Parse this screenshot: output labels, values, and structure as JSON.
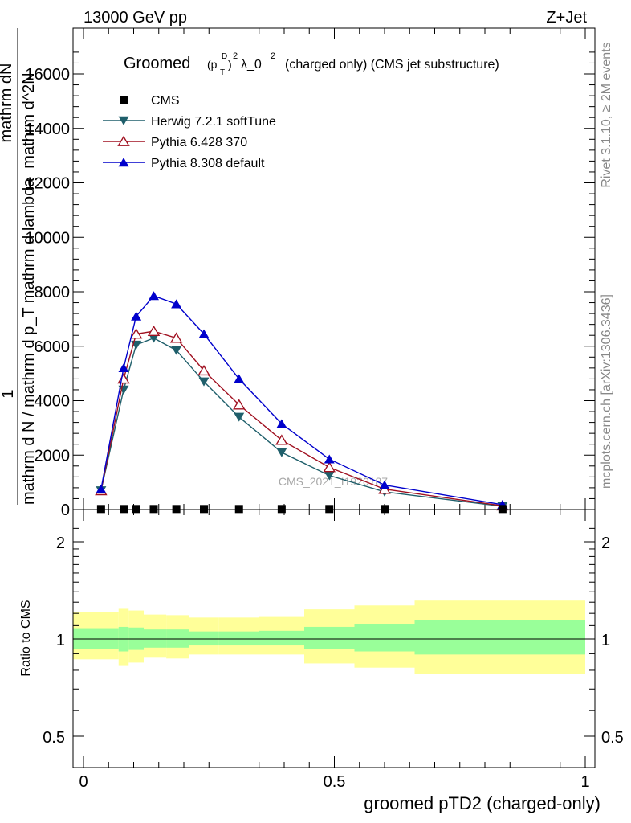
{
  "header": {
    "energy_label": "13000 GeV pp",
    "process_label": "Z+Jet"
  },
  "side_labels": {
    "rivet": "Rivet 3.1.10, ≥ 2M events",
    "mcplots": "mcplots.cern.ch [arXiv:1306.3436]"
  },
  "chart_data": [
    {
      "type": "line",
      "title": "Groomed (p_T^D)^2 λ_0^2  (charged only) (CMS jet substructure)",
      "title_parts": {
        "groomed": "Groomed",
        "p": "(p",
        "d_sup": "D",
        "t_sub": "T",
        "close": ")",
        "two_a": "2",
        "lambda": "λ_0",
        "two_b": "2",
        "rest": "(charged only) (CMS jet substructure)"
      },
      "ylabel_parts": {
        "one": "1",
        "numerator": "mathrm d^2N",
        "denominator": "mathrm d N / mathrm d p_T mathrm d lambda"
      },
      "ylabel_overlap": {
        "top": "mathrm dN",
        "bottom": "mathrm d pmathrm d lambda",
        "bottom2": "mathrm d p"
      },
      "ylim": [
        0,
        17500
      ],
      "yticks": [
        0,
        2000,
        4000,
        6000,
        8000,
        10000,
        12000,
        14000,
        16000
      ],
      "ytick_labels": [
        "0",
        "2000",
        "4000",
        "6000",
        "8000",
        "10000",
        "12000",
        "14000",
        "16000"
      ],
      "xlim": [
        0,
        1
      ],
      "watermark": "CMS_2021_I1920187",
      "legend_position": "top-left",
      "series": [
        {
          "name": "CMS",
          "color": "#000000",
          "marker": "square",
          "x": [
            0.035,
            0.08,
            0.105,
            0.14,
            0.185,
            0.24,
            0.31,
            0.395,
            0.49,
            0.6,
            0.835
          ],
          "values": [
            20,
            20,
            20,
            20,
            20,
            20,
            20,
            20,
            20,
            20,
            20
          ]
        },
        {
          "name": "Herwig 7.2.1 softTune",
          "color": "#1f5f6b",
          "marker": "triangle-down",
          "x": [
            0.035,
            0.08,
            0.105,
            0.14,
            0.185,
            0.24,
            0.31,
            0.395,
            0.49,
            0.6,
            0.835
          ],
          "values": [
            700,
            4400,
            6050,
            6300,
            5850,
            4700,
            3400,
            2100,
            1250,
            650,
            120
          ]
        },
        {
          "name": "Pythia 6.428 370",
          "color": "#a01020",
          "marker": "triangle-up-open",
          "x": [
            0.035,
            0.08,
            0.105,
            0.14,
            0.185,
            0.24,
            0.31,
            0.395,
            0.49,
            0.6,
            0.835
          ],
          "values": [
            700,
            4800,
            6450,
            6550,
            6300,
            5100,
            3850,
            2550,
            1550,
            750,
            140
          ]
        },
        {
          "name": "Pythia 8.308 default",
          "color": "#0000cc",
          "marker": "triangle-up",
          "x": [
            0.035,
            0.08,
            0.105,
            0.14,
            0.185,
            0.24,
            0.31,
            0.395,
            0.49,
            0.6,
            0.835
          ],
          "values": [
            750,
            5200,
            7100,
            7850,
            7550,
            6450,
            4800,
            3150,
            1850,
            900,
            180
          ]
        }
      ]
    },
    {
      "type": "area",
      "ylabel": "Ratio to CMS",
      "xlabel": "groomed pTD2 (charged-only)",
      "ylim": [
        0.4,
        2.4
      ],
      "log_y": true,
      "yticks": [
        0.5,
        1,
        2
      ],
      "ytick_labels": [
        "0.5",
        "1",
        "2"
      ],
      "xlim": [
        0,
        1
      ],
      "xticks": [
        0,
        0.5,
        1
      ],
      "xtick_labels": [
        "0",
        "0.5",
        "1"
      ],
      "reference_line": 1,
      "bins": [
        0,
        0.07,
        0.09,
        0.12,
        0.165,
        0.21,
        0.27,
        0.35,
        0.44,
        0.54,
        0.66,
        1.0
      ],
      "stat_band": {
        "color": "#99ff99",
        "lower": [
          0.93,
          0.915,
          0.925,
          0.94,
          0.94,
          0.955,
          0.955,
          0.955,
          0.93,
          0.915,
          0.895
        ],
        "upper": [
          1.08,
          1.09,
          1.085,
          1.07,
          1.07,
          1.055,
          1.055,
          1.06,
          1.09,
          1.11,
          1.145
        ]
      },
      "total_band": {
        "color": "#ffff99",
        "lower": [
          0.865,
          0.825,
          0.845,
          0.875,
          0.87,
          0.895,
          0.895,
          0.895,
          0.84,
          0.815,
          0.78
        ],
        "upper": [
          1.21,
          1.24,
          1.225,
          1.19,
          1.185,
          1.165,
          1.165,
          1.17,
          1.235,
          1.27,
          1.315
        ]
      }
    }
  ]
}
